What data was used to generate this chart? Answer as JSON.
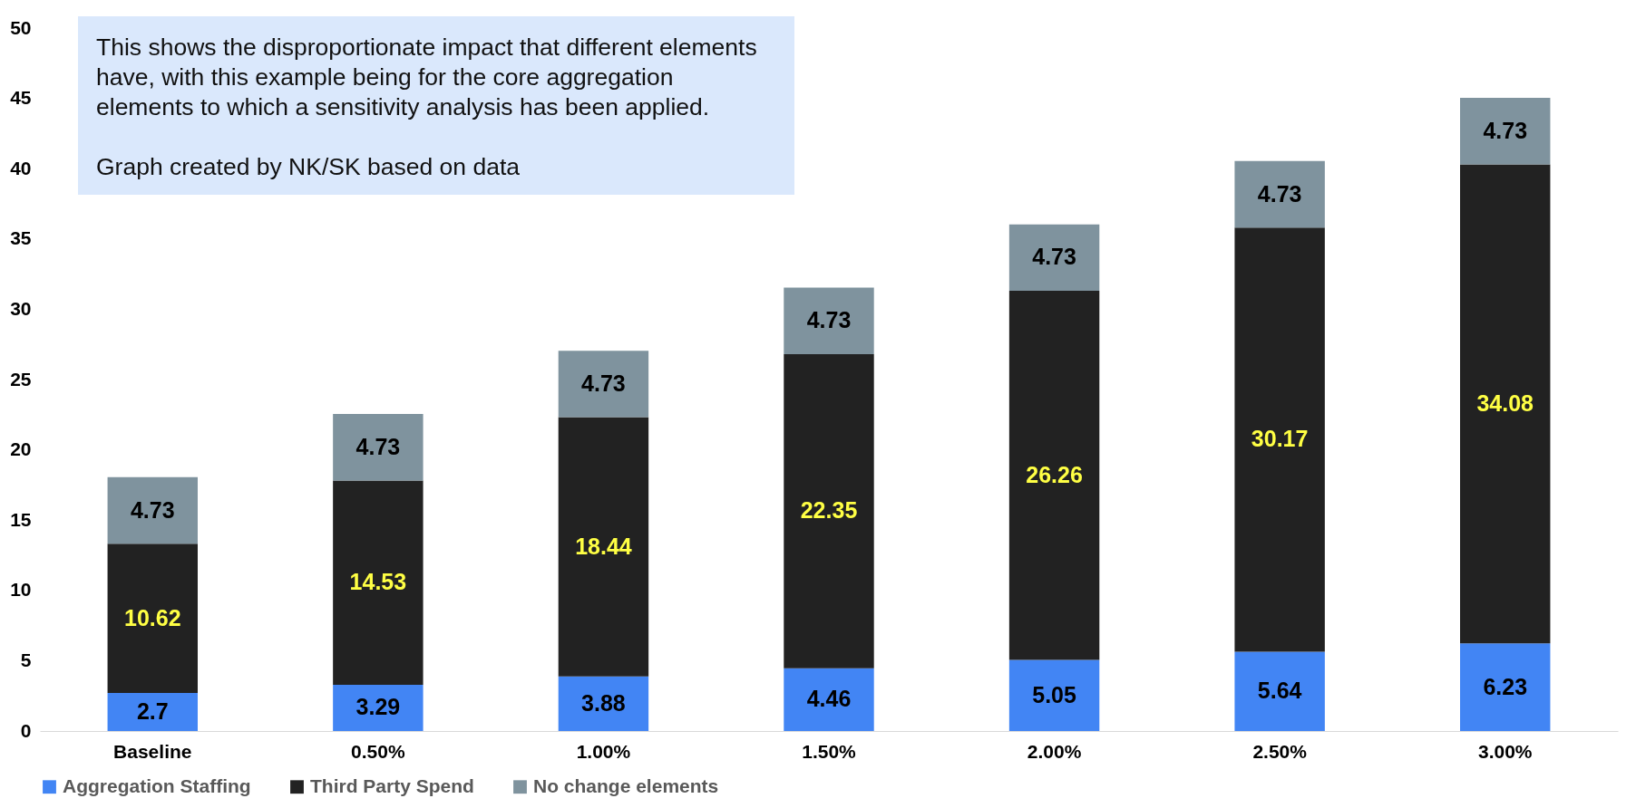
{
  "chart_data": {
    "type": "bar",
    "stacked": true,
    "categories": [
      "Baseline",
      "0.50%",
      "1.00%",
      "1.50%",
      "2.00%",
      "2.50%",
      "3.00%"
    ],
    "series": [
      {
        "name": "Aggregation Staffing",
        "color": "#4285f4",
        "values": [
          2.7,
          3.29,
          3.88,
          4.46,
          5.05,
          5.64,
          6.23
        ]
      },
      {
        "name": "Third Party Spend",
        "color": "#222222",
        "values": [
          10.62,
          14.53,
          18.44,
          22.35,
          26.26,
          30.17,
          34.08
        ]
      },
      {
        "name": "No change elements",
        "color": "#7f939e",
        "values": [
          4.73,
          4.73,
          4.73,
          4.73,
          4.73,
          4.73,
          4.73
        ]
      }
    ],
    "ylim": [
      0,
      50
    ],
    "yticks": [
      0,
      5,
      10,
      15,
      20,
      25,
      30,
      35,
      40,
      45,
      50
    ],
    "grid": false,
    "legend": "bottom",
    "data_labels": true,
    "annotations": [
      "This shows the disproportionate impact that different elements have, with this example being for the core aggregation elements to which a sensitivity analysis has been applied.",
      "Graph created by NK/SK based on data"
    ]
  }
}
